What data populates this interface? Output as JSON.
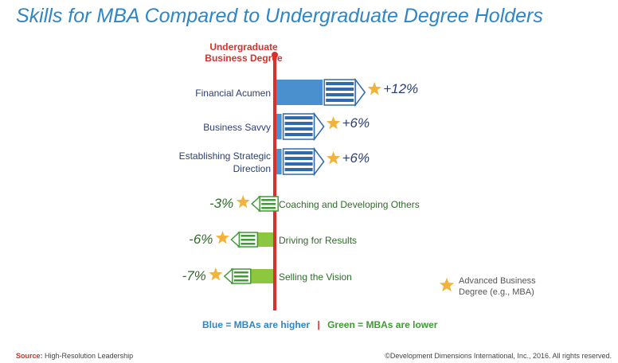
{
  "title": "Skills for MBA Compared to Undergraduate Degree Holders",
  "baseline_label_line1": "Undergraduate",
  "baseline_label_line2": "Business Degree",
  "legend_text_line1": "Advanced Business",
  "legend_text_line2": "Degree (e.g., MBA)",
  "key": {
    "blue": "Blue = MBAs are higher",
    "separator": "|",
    "green": "Green = MBAs are lower"
  },
  "source_label": "Source:",
  "source_value": "High-Resolution Leadership",
  "copyright": "©Development Dimensions International, Inc., 2016.  All rights reserved.",
  "colors": {
    "blue": "#4a90cf",
    "blue_dark": "#2f6aa9",
    "green": "#8dc63f",
    "green_dark": "#3f9b34",
    "baseline": "#d9302a",
    "star": "#f2b33d",
    "text_blue": "#2b3f73",
    "text_green": "#2e6b28",
    "title": "#2e86c6"
  },
  "chart_data": {
    "type": "bar",
    "orientation": "horizontal",
    "baseline": "Undergraduate Business Degree",
    "categories": [
      "Financial Acumen",
      "Business Savvy",
      "Establishing Strategic Direction",
      "Coaching and Developing Others",
      "Driving for Results",
      "Selling the Vision"
    ],
    "values": [
      12,
      6,
      6,
      -3,
      -6,
      -7
    ],
    "value_labels": [
      "+12%",
      "+6%",
      "+6%",
      "-3%",
      "-6%",
      "-7%"
    ],
    "unit": "%",
    "series": [
      {
        "name": "Advanced Business Degree (e.g., MBA)",
        "values": [
          12,
          6,
          6,
          -3,
          -6,
          -7
        ]
      }
    ]
  }
}
